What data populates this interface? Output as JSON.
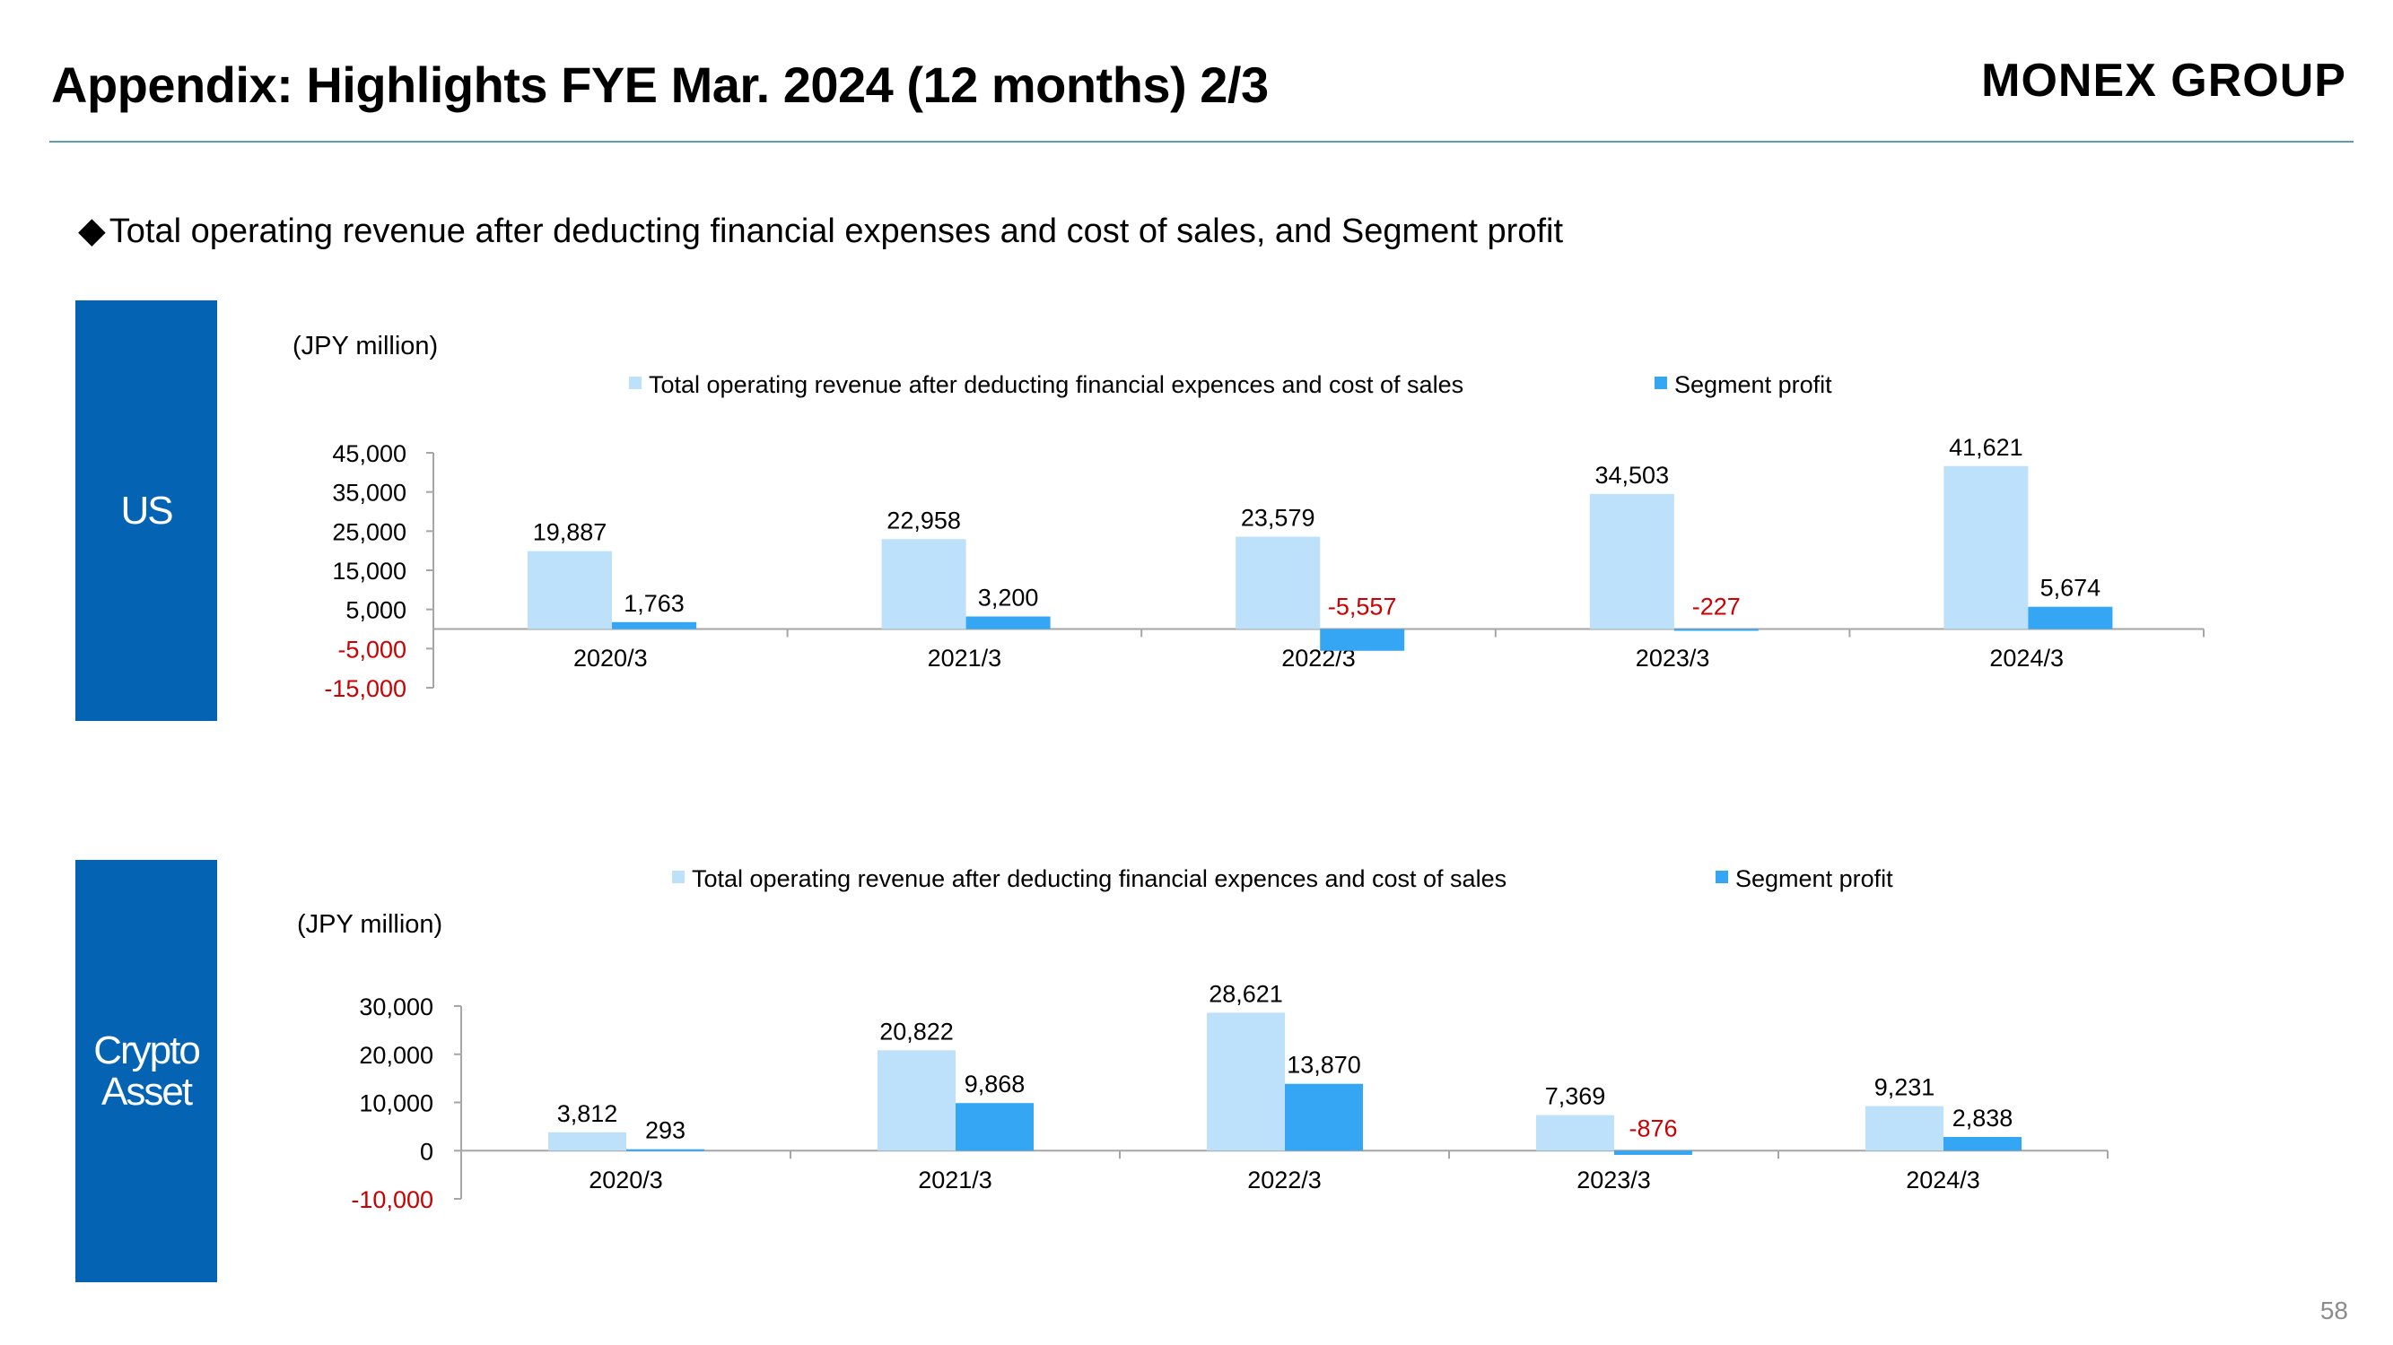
{
  "header": {
    "title": "Appendix: Highlights FYE Mar. 2024 (12 months) 2/3",
    "brand": "MONEX GROUP"
  },
  "section": {
    "bullet": "◆",
    "heading": "Total operating revenue after deducting financial expenses and cost of sales, and Segment profit"
  },
  "side_labels": {
    "us": "US",
    "crypto": "Crypto\nAsset"
  },
  "page_number": "58",
  "colors": {
    "revenue": "#bde0fb",
    "profit": "#35a6f4",
    "side_label_bg": "#0563b4",
    "negative_text": "#cc0000",
    "axis": "#a6a6a6"
  },
  "chart_data": [
    {
      "type": "bar",
      "name": "us",
      "unit_label": "(JPY million)",
      "categories": [
        "2020/3",
        "2021/3",
        "2022/3",
        "2023/3",
        "2024/3"
      ],
      "series": [
        {
          "name": "Total operating revenue after deducting financial expences and cost of sales",
          "values": [
            19887,
            22958,
            23579,
            34503,
            41621
          ],
          "labels": [
            "19,887",
            "22,958",
            "23,579",
            "34,503",
            "41,621"
          ]
        },
        {
          "name": "Segment profit",
          "values": [
            1763,
            3200,
            -5557,
            -227,
            5674
          ],
          "labels": [
            "1,763",
            "3,200",
            "-5,557",
            "-227",
            "5,674"
          ]
        }
      ],
      "yticks": [
        45000,
        35000,
        25000,
        15000,
        5000,
        -5000,
        -15000
      ],
      "ytick_labels": [
        "45,000",
        "35,000",
        "25,000",
        "15,000",
        "5,000",
        "-5,000",
        "-15,000"
      ],
      "ylim": [
        -15000,
        45000
      ],
      "legend": "top",
      "grid": false
    },
    {
      "type": "bar",
      "name": "crypto",
      "unit_label": "(JPY million)",
      "categories": [
        "2020/3",
        "2021/3",
        "2022/3",
        "2023/3",
        "2024/3"
      ],
      "series": [
        {
          "name": "Total operating revenue after deducting financial expences and cost of sales",
          "values": [
            3812,
            20822,
            28621,
            7369,
            9231
          ],
          "labels": [
            "3,812",
            "20,822",
            "28,621",
            "7,369",
            "9,231"
          ]
        },
        {
          "name": "Segment profit",
          "values": [
            293,
            9868,
            13870,
            -876,
            2838
          ],
          "labels": [
            "293",
            "9,868",
            "13,870",
            "-876",
            "2,838"
          ]
        }
      ],
      "yticks": [
        30000,
        20000,
        10000,
        0,
        -10000
      ],
      "ytick_labels": [
        "30,000",
        "20,000",
        "10,000",
        "0",
        "-10,000"
      ],
      "ylim": [
        -10000,
        30000
      ],
      "legend": "top",
      "grid": false
    }
  ]
}
